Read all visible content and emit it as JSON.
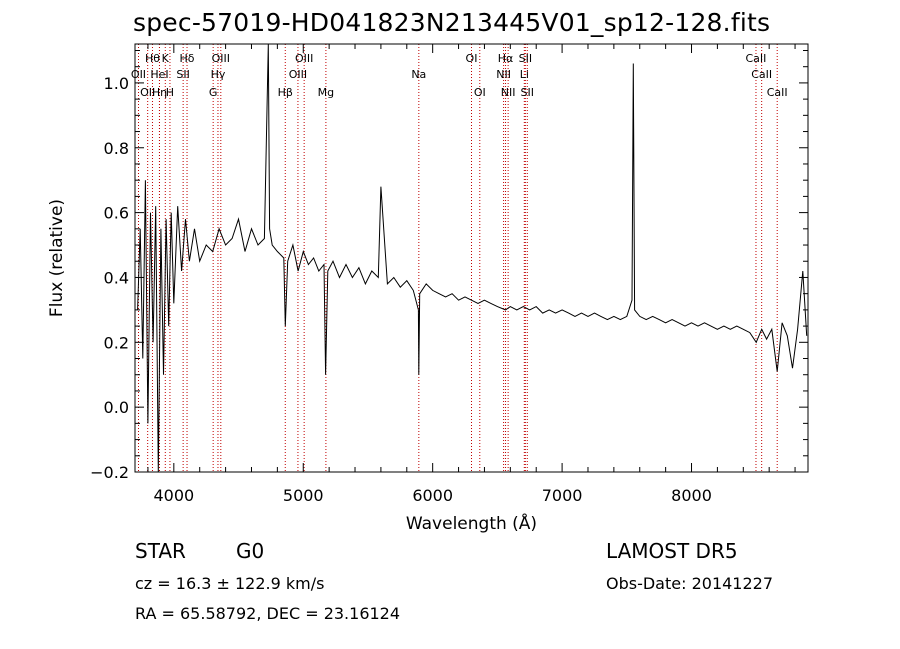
{
  "chart_data": {
    "type": "line",
    "title": "spec-57019-HD041823N213445V01_sp12-128.fits",
    "xlabel": "Wavelength (Å)",
    "ylabel": "Flux (relative)",
    "xlim": [
      3700,
      8900
    ],
    "ylim": [
      -0.2,
      1.12
    ],
    "xticks": [
      4000,
      5000,
      6000,
      7000,
      8000
    ],
    "xtick_labels": [
      "4000",
      "5000",
      "6000",
      "7000",
      "8000"
    ],
    "yticks": [
      -0.2,
      0.0,
      0.2,
      0.4,
      0.6,
      0.8,
      1.0
    ],
    "ytick_labels": [
      "−0.2",
      "0.0",
      "0.2",
      "0.4",
      "0.6",
      "0.8",
      "1.0"
    ],
    "grid": false,
    "series": [
      {
        "values_description": "flux spectrum",
        "x": [
          3720,
          3740,
          3760,
          3780,
          3800,
          3820,
          3840,
          3860,
          3880,
          3900,
          3920,
          3940,
          3960,
          3980,
          4000,
          4030,
          4060,
          4090,
          4120,
          4160,
          4200,
          4250,
          4300,
          4350,
          4400,
          4450,
          4500,
          4550,
          4600,
          4650,
          4700,
          4730,
          4740,
          4760,
          4800,
          4850,
          4861,
          4880,
          4920,
          4960,
          5000,
          5040,
          5080,
          5120,
          5160,
          5173,
          5190,
          5230,
          5280,
          5330,
          5380,
          5430,
          5480,
          5530,
          5580,
          5600,
          5650,
          5700,
          5750,
          5800,
          5850,
          5890,
          5893,
          5900,
          5950,
          6000,
          6050,
          6100,
          6150,
          6200,
          6250,
          6300,
          6350,
          6400,
          6450,
          6500,
          6563,
          6600,
          6650,
          6700,
          6750,
          6800,
          6850,
          6900,
          6950,
          7000,
          7050,
          7100,
          7150,
          7200,
          7250,
          7300,
          7350,
          7400,
          7450,
          7500,
          7540,
          7550,
          7560,
          7600,
          7650,
          7700,
          7750,
          7800,
          7850,
          7900,
          7950,
          8000,
          8050,
          8100,
          8150,
          8200,
          8250,
          8300,
          8350,
          8400,
          8450,
          8500,
          8542,
          8580,
          8620,
          8662,
          8700,
          8740,
          8780,
          8820,
          8860,
          8890
        ],
        "y": [
          0.3,
          0.55,
          0.15,
          0.7,
          -0.05,
          0.6,
          0.2,
          0.62,
          -0.2,
          0.55,
          0.1,
          0.58,
          0.25,
          0.6,
          0.32,
          0.62,
          0.42,
          0.58,
          0.45,
          0.55,
          0.45,
          0.5,
          0.48,
          0.55,
          0.5,
          0.52,
          0.58,
          0.48,
          0.55,
          0.5,
          0.52,
          1.12,
          0.55,
          0.5,
          0.48,
          0.46,
          0.25,
          0.45,
          0.5,
          0.42,
          0.48,
          0.44,
          0.46,
          0.42,
          0.44,
          0.1,
          0.42,
          0.45,
          0.4,
          0.44,
          0.4,
          0.43,
          0.38,
          0.42,
          0.4,
          0.68,
          0.38,
          0.4,
          0.37,
          0.39,
          0.36,
          0.3,
          0.1,
          0.35,
          0.38,
          0.36,
          0.35,
          0.34,
          0.35,
          0.33,
          0.34,
          0.33,
          0.32,
          0.33,
          0.32,
          0.31,
          0.3,
          0.31,
          0.3,
          0.31,
          0.3,
          0.31,
          0.29,
          0.3,
          0.29,
          0.3,
          0.29,
          0.28,
          0.29,
          0.28,
          0.29,
          0.28,
          0.27,
          0.28,
          0.27,
          0.28,
          0.33,
          1.06,
          0.3,
          0.28,
          0.27,
          0.28,
          0.27,
          0.26,
          0.27,
          0.26,
          0.25,
          0.26,
          0.25,
          0.26,
          0.25,
          0.24,
          0.25,
          0.24,
          0.25,
          0.24,
          0.23,
          0.2,
          0.24,
          0.21,
          0.24,
          0.11,
          0.26,
          0.22,
          0.12,
          0.24,
          0.42,
          0.22
        ]
      }
    ],
    "line_annotations": [
      {
        "wavelength": 3727,
        "label": "OII",
        "row": 2
      },
      {
        "wavelength": 3798,
        "label": "OII",
        "row": 3
      },
      {
        "wavelength": 3835,
        "label": "Hθ",
        "row": 1
      },
      {
        "wavelength": 3889,
        "label": "Hη",
        "row": 3
      },
      {
        "wavelength": 3934,
        "label": "K",
        "row": 1
      },
      {
        "wavelength": 3970,
        "label": "H",
        "row": 3
      },
      {
        "wavelength": 3889,
        "label": "HeI",
        "row": 2
      },
      {
        "wavelength": 4072,
        "label": "SII",
        "row": 2
      },
      {
        "wavelength": 4102,
        "label": "Hδ",
        "row": 1
      },
      {
        "wavelength": 4304,
        "label": "G",
        "row": 3
      },
      {
        "wavelength": 4341,
        "label": "Hγ",
        "row": 2
      },
      {
        "wavelength": 4363,
        "label": "OIII",
        "row": 1
      },
      {
        "wavelength": 4861,
        "label": "Hβ",
        "row": 3
      },
      {
        "wavelength": 4959,
        "label": "OIII",
        "row": 2
      },
      {
        "wavelength": 5007,
        "label": "OIII",
        "row": 1
      },
      {
        "wavelength": 5175,
        "label": "Mg",
        "row": 3
      },
      {
        "wavelength": 5893,
        "label": "Na",
        "row": 2
      },
      {
        "wavelength": 6300,
        "label": "OI",
        "row": 1
      },
      {
        "wavelength": 6364,
        "label": "OI",
        "row": 3
      },
      {
        "wavelength": 6548,
        "label": "NII",
        "row": 2
      },
      {
        "wavelength": 6563,
        "label": "Hα",
        "row": 1
      },
      {
        "wavelength": 6583,
        "label": "NII",
        "row": 3
      },
      {
        "wavelength": 6708,
        "label": "Li",
        "row": 2
      },
      {
        "wavelength": 6716,
        "label": "SII",
        "row": 1
      },
      {
        "wavelength": 6731,
        "label": "SII",
        "row": 3
      },
      {
        "wavelength": 8498,
        "label": "CaII",
        "row": 1
      },
      {
        "wavelength": 8542,
        "label": "CaII",
        "row": 2
      },
      {
        "wavelength": 8662,
        "label": "CaII",
        "row": 3
      }
    ],
    "annotation_line_color": "#c00000"
  },
  "info": {
    "object_class": "STAR",
    "subclass": "G0",
    "survey": "LAMOST DR5",
    "velocity": "cz = 16.3 ± 122.9 km/s",
    "obs_date": "Obs-Date: 20141227",
    "coords": "RA =  65.58792, DEC =  23.16124"
  }
}
